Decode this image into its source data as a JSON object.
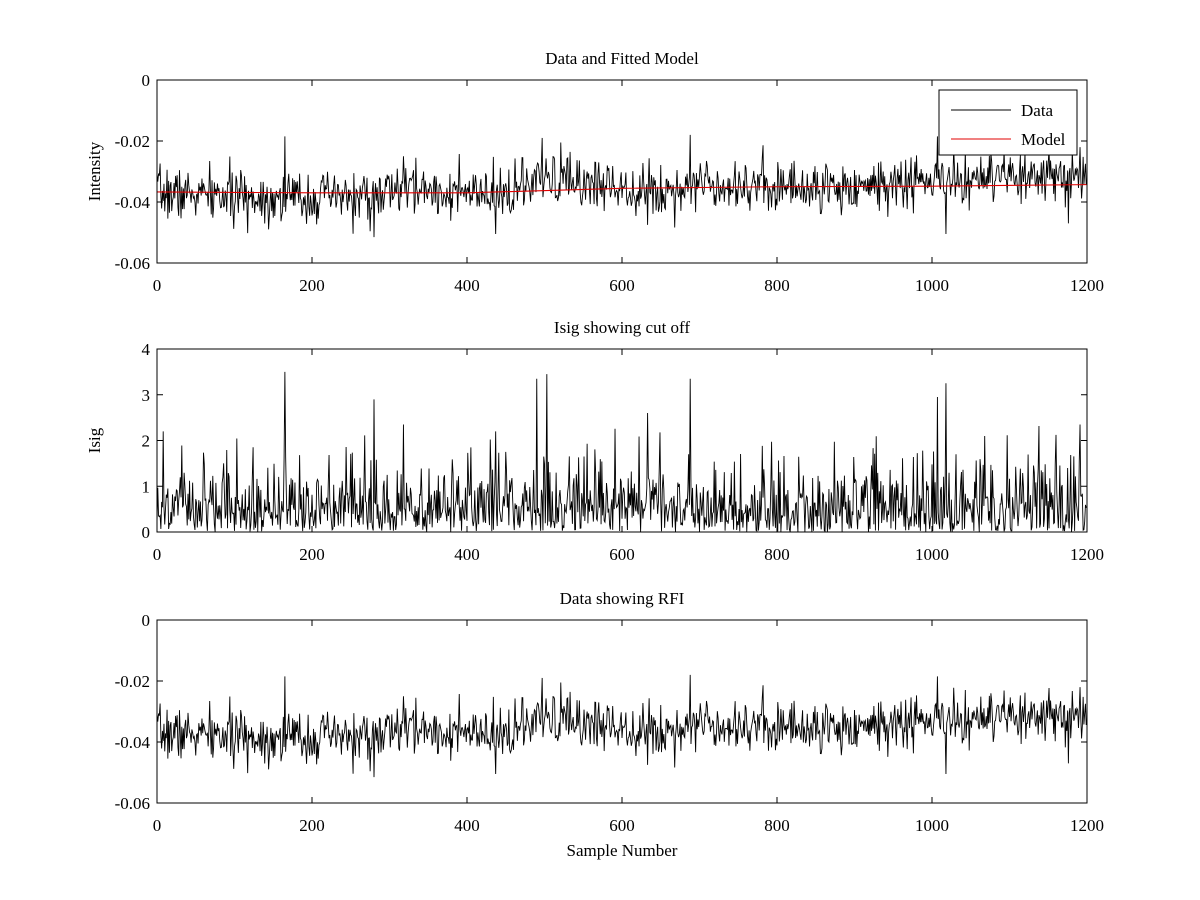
{
  "figure": {
    "xlabel": "Sample Number"
  },
  "colors": {
    "data": "#000000",
    "model": "#e00000",
    "axes": "#000000",
    "background": "#ffffff"
  },
  "chart_data": [
    {
      "type": "line",
      "title": "Data and Fitted Model",
      "xlabel": "",
      "ylabel": "Intensity",
      "xlim": [
        0,
        1200
      ],
      "ylim": [
        -0.06,
        0
      ],
      "xticks": [
        "0",
        "200",
        "400",
        "600",
        "800",
        "1000",
        "1200"
      ],
      "yticks": [
        "0",
        "-0.02",
        "-0.04",
        "-0.06"
      ],
      "grid": false,
      "legend": {
        "placement": "top-right",
        "entries": [
          "Data",
          "Model"
        ]
      },
      "series": [
        {
          "name": "Data",
          "color": "#000000",
          "generator": {
            "kind": "noise-around-trend",
            "count": 1200,
            "seed": 7,
            "trend": [
              [
                0,
                -0.037
              ],
              [
                120,
                -0.0385
              ],
              [
                280,
                -0.0385
              ],
              [
                320,
                -0.035
              ],
              [
                430,
                -0.0385
              ],
              [
                500,
                -0.033
              ],
              [
                600,
                -0.0345
              ],
              [
                650,
                -0.037
              ],
              [
                700,
                -0.0335
              ],
              [
                860,
                -0.0355
              ],
              [
                1000,
                -0.033
              ],
              [
                1200,
                -0.032
              ]
            ],
            "sigma": 0.0042,
            "spikes": [
              [
                165,
                -0.0185
              ],
              [
                280,
                -0.0515
              ],
              [
                318,
                -0.025
              ],
              [
                437,
                -0.0505
              ],
              [
                497,
                -0.019
              ],
              [
                521,
                -0.0205
              ],
              [
                633,
                -0.0475
              ],
              [
                688,
                -0.018
              ],
              [
                1007,
                -0.0185
              ],
              [
                1018,
                -0.0505
              ],
              [
                1176,
                -0.047
              ],
              [
                1191,
                -0.022
              ]
            ]
          }
        },
        {
          "name": "Model",
          "color": "#e00000",
          "x": [
            0,
            200,
            400,
            600,
            800,
            1000,
            1200
          ],
          "y": [
            -0.0367,
            -0.037,
            -0.037,
            -0.0355,
            -0.035,
            -0.0348,
            -0.0343
          ]
        }
      ]
    },
    {
      "type": "line",
      "title": "Isig showing cut off",
      "xlabel": "",
      "ylabel": "Isig",
      "xlim": [
        0,
        1200
      ],
      "ylim": [
        0,
        4
      ],
      "xticks": [
        "0",
        "200",
        "400",
        "600",
        "800",
        "1000",
        "1200"
      ],
      "yticks": [
        "0",
        "1",
        "2",
        "3",
        "4"
      ],
      "grid": false,
      "series": [
        {
          "color": "#000000",
          "generator": {
            "kind": "abs-noise",
            "count": 1200,
            "seed": 11,
            "scale": 0.75,
            "spikes": [
              [
                8,
                2.2
              ],
              [
                165,
                3.5
              ],
              [
                280,
                2.9
              ],
              [
                318,
                2.35
              ],
              [
                437,
                2.2
              ],
              [
                490,
                3.35
              ],
              [
                503,
                3.45
              ],
              [
                633,
                2.6
              ],
              [
                688,
                3.35
              ],
              [
                1007,
                2.95
              ],
              [
                1018,
                3.25
              ],
              [
                1191,
                2.35
              ]
            ]
          }
        }
      ]
    },
    {
      "type": "line",
      "title": "Data showing RFI",
      "xlabel": "Sample Number",
      "ylabel": "",
      "xlim": [
        0,
        1200
      ],
      "ylim": [
        -0.06,
        0
      ],
      "xticks": [
        "0",
        "200",
        "400",
        "600",
        "800",
        "1000",
        "1200"
      ],
      "yticks": [
        "0",
        "-0.02",
        "-0.04",
        "-0.06"
      ],
      "grid": false,
      "series": [
        {
          "color": "#000000",
          "generator": {
            "kind": "noise-around-trend",
            "count": 1200,
            "seed": 7,
            "trend": [
              [
                0,
                -0.037
              ],
              [
                120,
                -0.0385
              ],
              [
                280,
                -0.0385
              ],
              [
                320,
                -0.035
              ],
              [
                430,
                -0.0385
              ],
              [
                500,
                -0.033
              ],
              [
                600,
                -0.0345
              ],
              [
                650,
                -0.037
              ],
              [
                700,
                -0.0335
              ],
              [
                860,
                -0.0355
              ],
              [
                1000,
                -0.033
              ],
              [
                1200,
                -0.032
              ]
            ],
            "sigma": 0.0042,
            "spikes": [
              [
                165,
                -0.0185
              ],
              [
                280,
                -0.0515
              ],
              [
                318,
                -0.025
              ],
              [
                437,
                -0.0505
              ],
              [
                497,
                -0.019
              ],
              [
                521,
                -0.0205
              ],
              [
                633,
                -0.0475
              ],
              [
                688,
                -0.018
              ],
              [
                1007,
                -0.0185
              ],
              [
                1018,
                -0.0505
              ],
              [
                1176,
                -0.047
              ],
              [
                1191,
                -0.022
              ]
            ]
          }
        }
      ]
    }
  ]
}
